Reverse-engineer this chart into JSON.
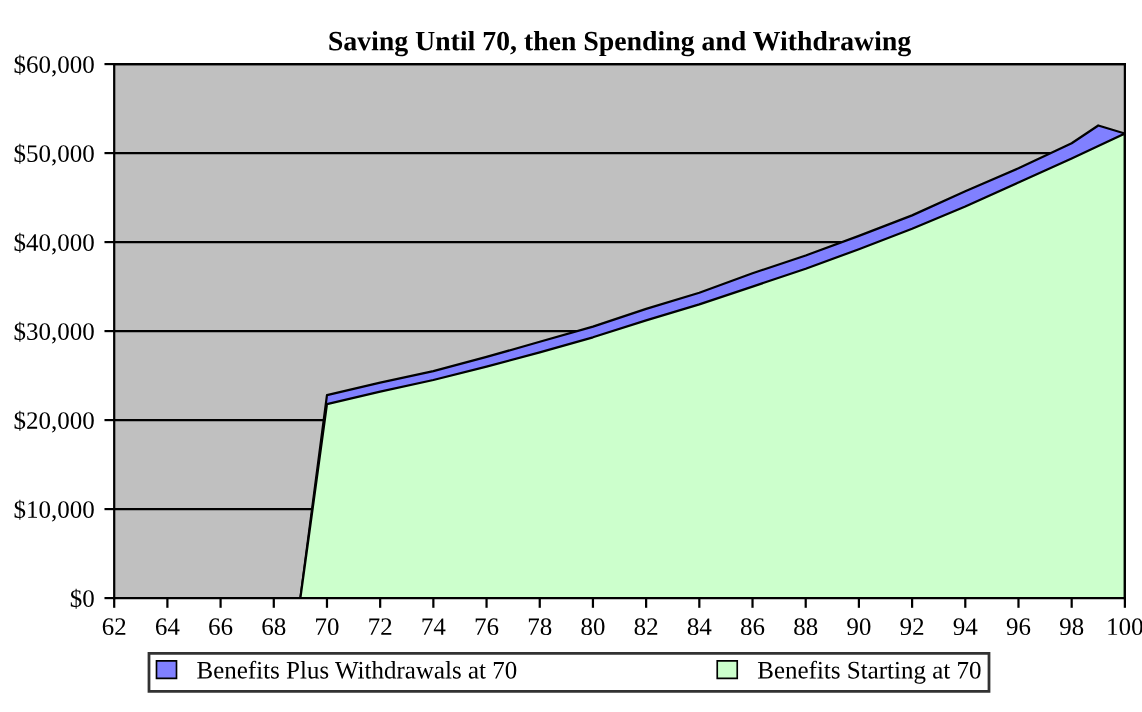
{
  "chart_data": {
    "type": "area",
    "title": "Saving Until 70, then Spending and Withdrawing",
    "series": [
      {
        "name": "Benefits Plus Withdrawals at 70",
        "color": "#8080ff",
        "x": [
          62,
          64,
          66,
          68,
          69,
          70,
          72,
          74,
          76,
          78,
          80,
          82,
          84,
          86,
          88,
          90,
          92,
          94,
          96,
          98,
          99,
          100
        ],
        "values": [
          0,
          0,
          0,
          0,
          0,
          22800,
          24200,
          25500,
          27100,
          28800,
          30500,
          32500,
          34300,
          36500,
          38500,
          40700,
          43000,
          45700,
          48300,
          51100,
          53100,
          52200
        ]
      },
      {
        "name": "Benefits Starting at 70",
        "color": "#ccffcc",
        "x": [
          62,
          64,
          66,
          68,
          69,
          70,
          72,
          74,
          76,
          78,
          80,
          82,
          84,
          86,
          88,
          90,
          92,
          94,
          96,
          98,
          99,
          100
        ],
        "values": [
          0,
          0,
          0,
          0,
          0,
          21800,
          23200,
          24500,
          26000,
          27600,
          29300,
          31200,
          33000,
          35000,
          37000,
          39200,
          41500,
          44000,
          46700,
          49400,
          50800,
          52200
        ]
      }
    ],
    "xlim": [
      62,
      100
    ],
    "xticks": [
      62,
      64,
      66,
      68,
      70,
      72,
      74,
      76,
      78,
      80,
      82,
      84,
      86,
      88,
      90,
      92,
      94,
      96,
      98,
      100
    ],
    "ylim": [
      0,
      60000
    ],
    "yticks": [
      {
        "value": 0,
        "label": "$0"
      },
      {
        "value": 10000,
        "label": "$10,000"
      },
      {
        "value": 20000,
        "label": "$20,000"
      },
      {
        "value": 30000,
        "label": "$30,000"
      },
      {
        "value": 40000,
        "label": "$40,000"
      },
      {
        "value": 50000,
        "label": "$50,000"
      },
      {
        "value": 60000,
        "label": "$60,000"
      }
    ],
    "grid": "y",
    "legend": "bottom"
  }
}
